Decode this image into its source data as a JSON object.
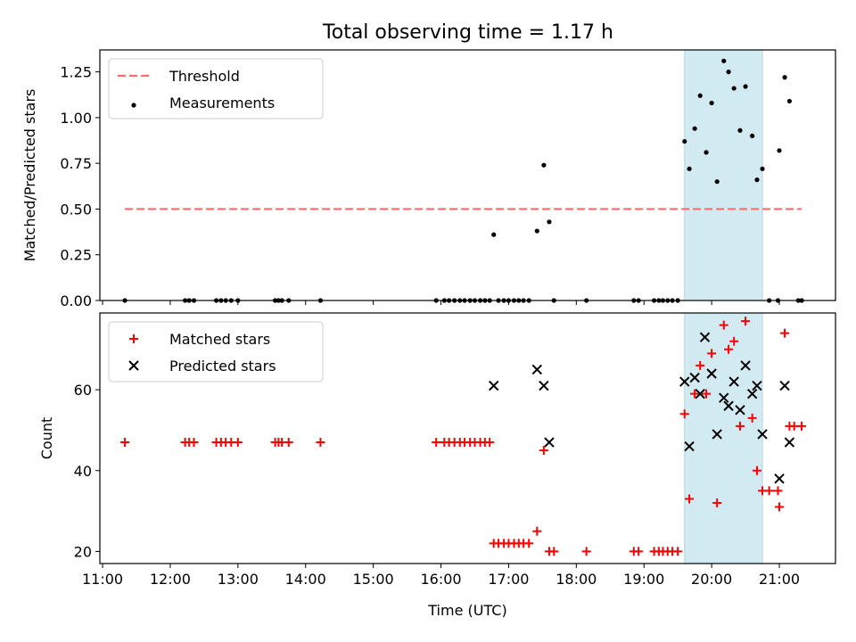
{
  "title": "Total observing time = 1.17 h",
  "chart_data": [
    {
      "type": "scatter",
      "panel": "top",
      "ylabel": "Matched/Predicted stars",
      "xlim": [
        10.96,
        21.83
      ],
      "ylim": [
        0,
        1.37
      ],
      "yticks": [
        0,
        0.25,
        0.5,
        0.75,
        1.0,
        1.25
      ],
      "ytick_labels": [
        "0.00",
        "0.25",
        "0.50",
        "0.75",
        "1.00",
        "1.25"
      ],
      "shaded_region": {
        "x_start": 19.6,
        "x_end": 20.75,
        "color": "#add8e6"
      },
      "legend": {
        "placement": "top-left",
        "entries": [
          "Threshold",
          "Measurements"
        ]
      },
      "series": [
        {
          "name": "Threshold",
          "kind": "dashed-line",
          "color": "#ff6b6b",
          "points": [
            [
              11.33,
              0.5
            ],
            [
              21.33,
              0.5
            ]
          ]
        },
        {
          "name": "Measurements",
          "kind": "dots",
          "color": "#000000",
          "points": [
            [
              11.33,
              0
            ],
            [
              12.22,
              0
            ],
            [
              12.28,
              0
            ],
            [
              12.35,
              0
            ],
            [
              12.68,
              0
            ],
            [
              12.75,
              0
            ],
            [
              12.82,
              0
            ],
            [
              12.9,
              0
            ],
            [
              13.0,
              0
            ],
            [
              13.55,
              0
            ],
            [
              13.6,
              0
            ],
            [
              13.65,
              0
            ],
            [
              13.75,
              0
            ],
            [
              14.22,
              0
            ],
            [
              15.93,
              0
            ],
            [
              16.05,
              0
            ],
            [
              16.12,
              0
            ],
            [
              16.2,
              0
            ],
            [
              16.28,
              0
            ],
            [
              16.35,
              0
            ],
            [
              16.43,
              0
            ],
            [
              16.5,
              0
            ],
            [
              16.58,
              0
            ],
            [
              16.65,
              0
            ],
            [
              16.72,
              0
            ],
            [
              16.85,
              0
            ],
            [
              16.93,
              0
            ],
            [
              17.0,
              0
            ],
            [
              17.08,
              0
            ],
            [
              17.15,
              0
            ],
            [
              17.22,
              0
            ],
            [
              17.3,
              0
            ],
            [
              17.67,
              0
            ],
            [
              18.15,
              0
            ],
            [
              18.85,
              0
            ],
            [
              18.92,
              0
            ],
            [
              19.15,
              0
            ],
            [
              19.22,
              0
            ],
            [
              19.28,
              0
            ],
            [
              19.35,
              0
            ],
            [
              19.42,
              0
            ],
            [
              19.5,
              0
            ],
            [
              20.85,
              0
            ],
            [
              20.98,
              0
            ],
            [
              21.28,
              0
            ],
            [
              21.33,
              0
            ],
            [
              16.78,
              0.36
            ],
            [
              17.42,
              0.38
            ],
            [
              17.52,
              0.74
            ],
            [
              17.6,
              0.43
            ],
            [
              19.6,
              0.87
            ],
            [
              19.67,
              0.72
            ],
            [
              19.75,
              0.94
            ],
            [
              19.83,
              1.12
            ],
            [
              19.92,
              0.81
            ],
            [
              20.0,
              1.08
            ],
            [
              20.08,
              0.65
            ],
            [
              20.18,
              1.31
            ],
            [
              20.25,
              1.25
            ],
            [
              20.33,
              1.16
            ],
            [
              20.42,
              0.93
            ],
            [
              20.5,
              1.17
            ],
            [
              20.6,
              0.9
            ],
            [
              20.67,
              0.66
            ],
            [
              20.75,
              0.72
            ],
            [
              21.0,
              0.82
            ],
            [
              21.08,
              1.22
            ],
            [
              21.15,
              1.09
            ]
          ]
        }
      ]
    },
    {
      "type": "scatter",
      "panel": "bottom",
      "xlabel": "Time (UTC)",
      "ylabel": "Count",
      "xlim": [
        10.96,
        21.83
      ],
      "ylim": [
        17,
        79
      ],
      "yticks": [
        20,
        40,
        60
      ],
      "ytick_labels": [
        "20",
        "40",
        "60"
      ],
      "xticks": [
        11,
        12,
        13,
        14,
        15,
        16,
        17,
        18,
        19,
        20,
        21
      ],
      "xtick_labels": [
        "11:00",
        "12:00",
        "13:00",
        "14:00",
        "15:00",
        "16:00",
        "17:00",
        "18:00",
        "19:00",
        "20:00",
        "21:00"
      ],
      "shaded_region": {
        "x_start": 19.6,
        "x_end": 20.75,
        "color": "#add8e6"
      },
      "legend": {
        "placement": "top-left",
        "entries": [
          "Matched stars",
          "Predicted stars"
        ]
      },
      "series": [
        {
          "name": "Matched stars",
          "kind": "plus",
          "color": "#ff0000",
          "points": [
            [
              11.33,
              47
            ],
            [
              12.22,
              47
            ],
            [
              12.28,
              47
            ],
            [
              12.35,
              47
            ],
            [
              12.68,
              47
            ],
            [
              12.75,
              47
            ],
            [
              12.82,
              47
            ],
            [
              12.9,
              47
            ],
            [
              13.0,
              47
            ],
            [
              13.55,
              47
            ],
            [
              13.6,
              47
            ],
            [
              13.65,
              47
            ],
            [
              13.75,
              47
            ],
            [
              14.22,
              47
            ],
            [
              15.93,
              47
            ],
            [
              16.05,
              47
            ],
            [
              16.12,
              47
            ],
            [
              16.2,
              47
            ],
            [
              16.28,
              47
            ],
            [
              16.35,
              47
            ],
            [
              16.43,
              47
            ],
            [
              16.5,
              47
            ],
            [
              16.58,
              47
            ],
            [
              16.65,
              47
            ],
            [
              16.72,
              47
            ],
            [
              16.78,
              22
            ],
            [
              16.85,
              22
            ],
            [
              16.93,
              22
            ],
            [
              17.0,
              22
            ],
            [
              17.08,
              22
            ],
            [
              17.15,
              22
            ],
            [
              17.22,
              22
            ],
            [
              17.3,
              22
            ],
            [
              17.42,
              25
            ],
            [
              17.52,
              45
            ],
            [
              17.6,
              20
            ],
            [
              17.67,
              20
            ],
            [
              18.15,
              20
            ],
            [
              18.85,
              20
            ],
            [
              18.92,
              20
            ],
            [
              19.15,
              20
            ],
            [
              19.22,
              20
            ],
            [
              19.28,
              20
            ],
            [
              19.35,
              20
            ],
            [
              19.42,
              20
            ],
            [
              19.5,
              20
            ],
            [
              19.6,
              54
            ],
            [
              19.67,
              33
            ],
            [
              19.75,
              59
            ],
            [
              19.83,
              66
            ],
            [
              19.92,
              59
            ],
            [
              20.0,
              69
            ],
            [
              20.08,
              32
            ],
            [
              20.18,
              76
            ],
            [
              20.25,
              70
            ],
            [
              20.33,
              72
            ],
            [
              20.42,
              51
            ],
            [
              20.5,
              77
            ],
            [
              20.6,
              53
            ],
            [
              20.67,
              40
            ],
            [
              20.75,
              35
            ],
            [
              20.85,
              35
            ],
            [
              20.98,
              35
            ],
            [
              21.0,
              31
            ],
            [
              21.08,
              74
            ],
            [
              21.15,
              51
            ],
            [
              21.22,
              51
            ],
            [
              21.33,
              51
            ]
          ]
        },
        {
          "name": "Predicted stars",
          "kind": "cross",
          "color": "#000000",
          "points": [
            [
              16.78,
              61
            ],
            [
              17.42,
              65
            ],
            [
              17.52,
              61
            ],
            [
              17.6,
              47
            ],
            [
              19.6,
              62
            ],
            [
              19.67,
              46
            ],
            [
              19.75,
              63
            ],
            [
              19.83,
              59
            ],
            [
              19.9,
              73
            ],
            [
              20.0,
              64
            ],
            [
              20.08,
              49
            ],
            [
              20.18,
              58
            ],
            [
              20.25,
              56
            ],
            [
              20.33,
              62
            ],
            [
              20.42,
              55
            ],
            [
              20.5,
              66
            ],
            [
              20.6,
              59
            ],
            [
              20.67,
              61
            ],
            [
              20.75,
              49
            ],
            [
              21.0,
              38
            ],
            [
              21.08,
              61
            ],
            [
              21.15,
              47
            ]
          ]
        }
      ]
    }
  ]
}
